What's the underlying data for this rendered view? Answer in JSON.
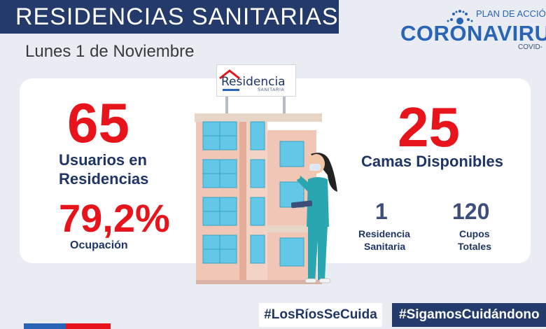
{
  "header": {
    "title": "RESIDENCIAS SANITARIAS",
    "date": "Lunes 1 de Noviembre"
  },
  "brand": {
    "plan": "PLAN DE ACCIÓ",
    "coronavirus": "CORONAVIRUS",
    "covid": "COVID-"
  },
  "sign": {
    "title": "Residencia",
    "subtitle": "SANITARIA"
  },
  "stats": {
    "users_value": "65",
    "users_label_1": "Usuarios en",
    "users_label_2": "Residencias",
    "occupancy_value": "79,2%",
    "occupancy_label": "Ocupación",
    "beds_value": "25",
    "beds_label": "Camas Disponibles",
    "residences_value": "1",
    "residences_label_1": "Residencia",
    "residences_label_2": "Sanitaria",
    "slots_value": "120",
    "slots_label_1": "Cupos",
    "slots_label_2": "Totales"
  },
  "footer": {
    "hashtag_1": "#LosRíosSeCuida",
    "hashtag_2": "#SigamosCuidándono"
  },
  "colors": {
    "navy": "#233a6b",
    "red": "#e8141c",
    "blue": "#2a64b7",
    "teal": "#2aa6b0"
  }
}
